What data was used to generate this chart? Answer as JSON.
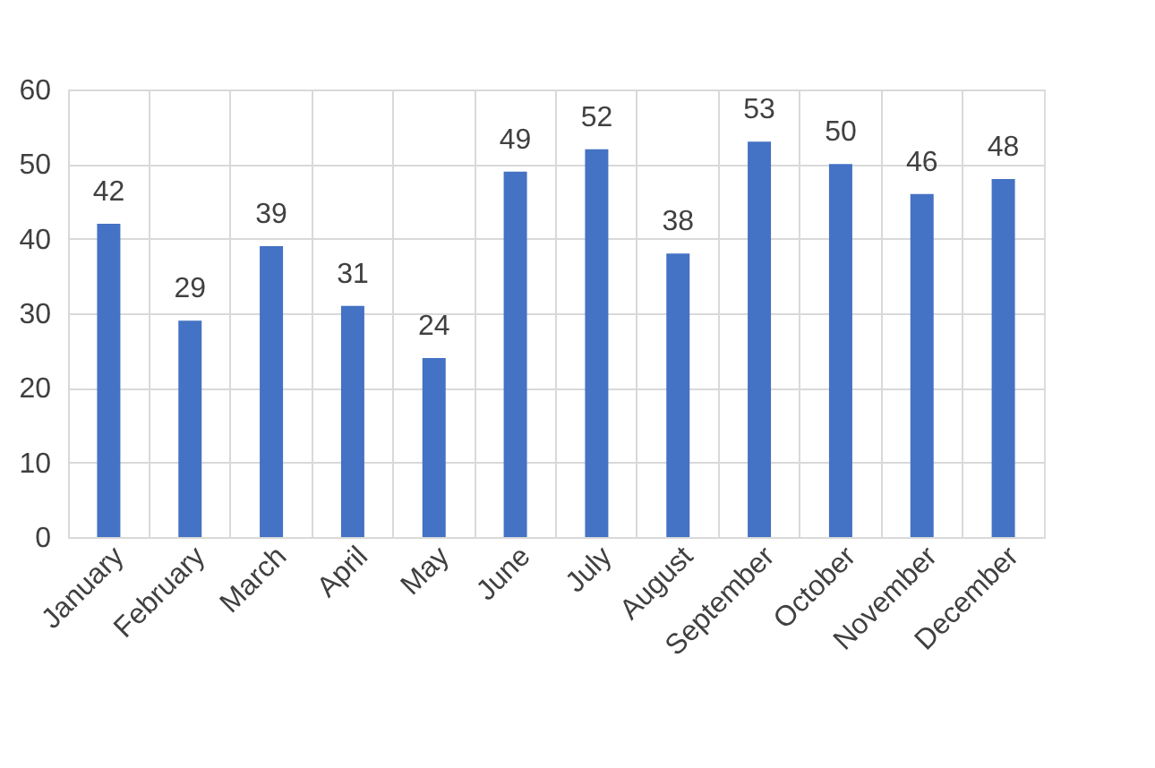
{
  "chart_data": {
    "type": "bar",
    "categories": [
      "January",
      "February",
      "March",
      "April",
      "May",
      "June",
      "July",
      "August",
      "September",
      "October",
      "November",
      "December"
    ],
    "values": [
      42,
      29,
      39,
      31,
      24,
      49,
      52,
      38,
      53,
      50,
      46,
      48
    ],
    "color": "#4472c4",
    "ylim": [
      0,
      60
    ],
    "yticks": [
      0,
      10,
      20,
      30,
      40,
      50,
      60
    ],
    "grid": true,
    "data_labels": true
  }
}
